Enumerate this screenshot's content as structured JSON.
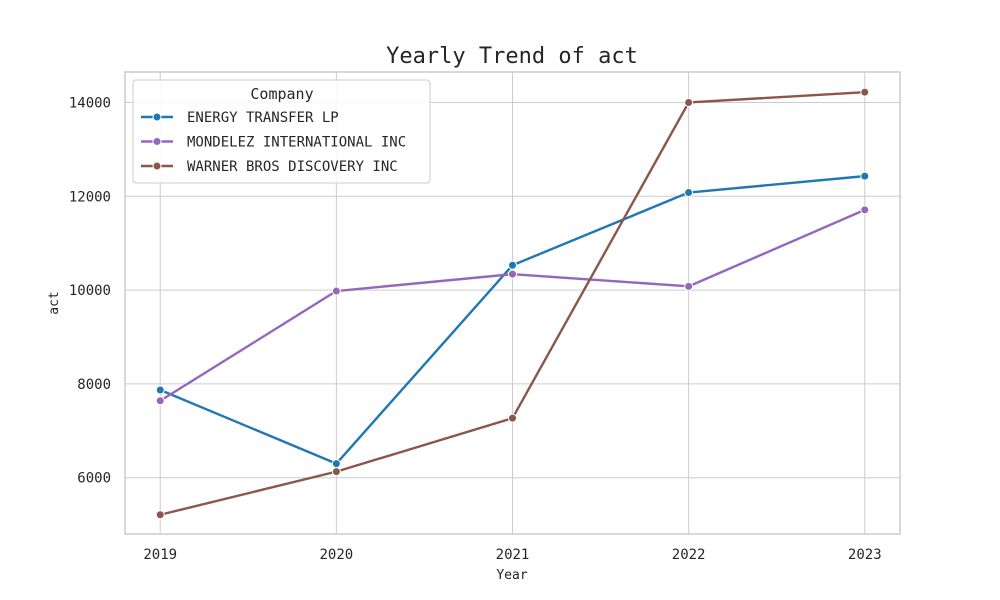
{
  "chart_data": {
    "type": "line",
    "title": "Yearly Trend of act",
    "xlabel": "Year",
    "ylabel": "act",
    "x": [
      2019,
      2020,
      2021,
      2022,
      2023
    ],
    "xticks": [
      "2019",
      "2020",
      "2021",
      "2022",
      "2023"
    ],
    "yticks": [
      6000,
      8000,
      10000,
      12000,
      14000
    ],
    "xlim": [
      2018.8,
      2023.2
    ],
    "ylim": [
      4800,
      14650
    ],
    "grid": true,
    "legend": {
      "title": "Company",
      "placement": "top-left"
    },
    "series": [
      {
        "name": "ENERGY TRANSFER LP",
        "color": "#1f77b4",
        "values": [
          7870,
          6300,
          10530,
          12080,
          12430
        ]
      },
      {
        "name": "MONDELEZ INTERNATIONAL INC",
        "color": "#9467bd",
        "values": [
          7640,
          9980,
          10340,
          10080,
          11710
        ]
      },
      {
        "name": "WARNER BROS DISCOVERY INC",
        "color": "#8c564b",
        "values": [
          5210,
          6130,
          7270,
          14000,
          14220
        ]
      }
    ]
  }
}
